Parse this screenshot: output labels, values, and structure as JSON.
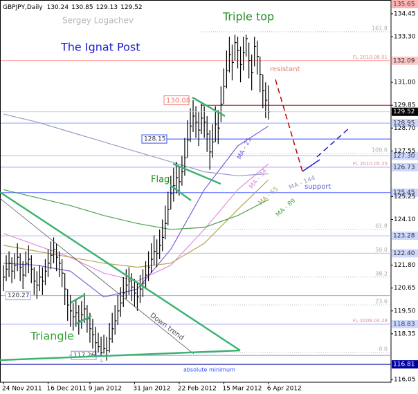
{
  "chart_data": {
    "type": "hlc",
    "annotations": {
      "symbol": "GBPJPY,Daily",
      "ohlc": [
        130.24,
        130.85,
        129.13,
        129.52
      ],
      "author": "Sergey Logachev",
      "site": "The Ignat Post",
      "pattern": "Triple top",
      "resistance": "resistant",
      "flag": "Flag",
      "support": "support",
      "triangle": "Triangle",
      "downtrend": "Down trend",
      "minimum": "absolute minimum",
      "low_mark": "L"
    },
    "ylim": [
      115.91,
      134.97
    ],
    "yticks": [
      134.45,
      {
        "value": 133.3,
        "label": "133.30"
      },
      {
        "value": 131.0,
        "label": "131.00"
      },
      129.85,
      {
        "value": 128.7,
        "label": "128.70"
      },
      127.55,
      125.25,
      {
        "value": 124.1,
        "label": "124.10"
      },
      {
        "value": 121.8,
        "label": "121.80"
      },
      120.65,
      {
        "value": 119.5,
        "label": "119.50"
      },
      118.35,
      116.05
    ],
    "categories": [
      "24 Nov 2011",
      null,
      null,
      null,
      null,
      null,
      null,
      null,
      null,
      null,
      null,
      null,
      null,
      null,
      null,
      null,
      "16 Dec 2011",
      null,
      null,
      null,
      null,
      null,
      null,
      null,
      null,
      null,
      null,
      null,
      null,
      null,
      null,
      "9 Jan 2012",
      null,
      null,
      null,
      null,
      null,
      null,
      null,
      null,
      null,
      null,
      null,
      null,
      null,
      null,
      null,
      "31 Jan 2012",
      null,
      null,
      null,
      null,
      null,
      null,
      null,
      null,
      null,
      null,
      null,
      null,
      null,
      null,
      null,
      "22 Feb 2012",
      null,
      null,
      null,
      null,
      null,
      null,
      null,
      null,
      null,
      null,
      null,
      null,
      null,
      null,
      null,
      "15 Mar 2012",
      null,
      null,
      null,
      null,
      null,
      null,
      null,
      null,
      null,
      null,
      null,
      null,
      null,
      null,
      null,
      "6 Apr 2012"
    ],
    "high": [
      121.8,
      122.3,
      122.5,
      122.2,
      122.4,
      122.9,
      122.4,
      122.0,
      122.5,
      122.8,
      122.3,
      121.7,
      121.5,
      121.8,
      121.7,
      122.1,
      122.6,
      123.0,
      123.2,
      122.9,
      122.5,
      122.1,
      121.4,
      120.6,
      120.3,
      119.9,
      120.1,
      119.8,
      120.0,
      120.4,
      119.8,
      119.4,
      119.1,
      118.7,
      118.4,
      118.2,
      118.3,
      118.2,
      118.9,
      119.4,
      119.8,
      120.3,
      120.7,
      121.2,
      121.6,
      121.7,
      121.4,
      121.1,
      120.9,
      121.3,
      121.6,
      122.0,
      122.5,
      122.9,
      123.3,
      123.1,
      123.6,
      124.1,
      124.8,
      125.5,
      126.3,
      126.7,
      127.0,
      126.8,
      127.3,
      128.2,
      129.1,
      129.7,
      130.1,
      129.8,
      129.5,
      130.0,
      129.8,
      129.3,
      128.6,
      128.9,
      129.8,
      129.6,
      130.8,
      131.7,
      132.6,
      133.3,
      132.9,
      133.4,
      133.3,
      132.8,
      133.3,
      133.4,
      133.0,
      132.4,
      133.3,
      133.1,
      132.3,
      131.4,
      131.0,
      130.85
    ],
    "low": [
      120.5,
      121.0,
      121.2,
      120.9,
      121.1,
      121.5,
      121.0,
      120.6,
      121.2,
      121.4,
      120.9,
      120.3,
      120.1,
      120.5,
      120.3,
      120.8,
      121.2,
      121.6,
      121.9,
      121.5,
      121.2,
      120.7,
      119.8,
      119.0,
      118.7,
      118.5,
      118.7,
      118.3,
      118.6,
      118.9,
      118.4,
      117.9,
      117.6,
      117.2,
      117.4,
      117.26,
      117.35,
      117.0,
      117.4,
      117.9,
      118.3,
      118.8,
      119.2,
      119.7,
      120.1,
      120.3,
      120.0,
      119.7,
      119.5,
      119.9,
      120.2,
      120.6,
      121.0,
      121.4,
      121.8,
      121.7,
      122.1,
      122.5,
      123.1,
      123.8,
      124.6,
      125.0,
      125.4,
      125.3,
      125.8,
      126.3,
      127.2,
      128.0,
      128.5,
      128.2,
      127.8,
      128.4,
      128.2,
      127.5,
      126.6,
      127.2,
      128.0,
      127.9,
      129.0,
      129.9,
      130.7,
      131.5,
      131.1,
      132.1,
      131.7,
      131.0,
      131.6,
      132.3,
      131.2,
      130.6,
      131.8,
      131.4,
      130.5,
      129.7,
      129.2,
      129.13
    ],
    "close": [
      121.2,
      121.6,
      121.9,
      121.5,
      121.8,
      122.2,
      121.7,
      121.3,
      121.9,
      122.1,
      121.6,
      121.0,
      120.8,
      121.2,
      121.0,
      121.5,
      121.9,
      122.3,
      122.6,
      122.2,
      121.9,
      121.4,
      120.6,
      119.8,
      119.5,
      119.2,
      119.4,
      119.0,
      119.3,
      119.6,
      119.1,
      118.6,
      118.3,
      117.9,
      117.7,
      117.4,
      117.6,
      117.5,
      118.1,
      118.6,
      119.0,
      119.5,
      119.9,
      120.4,
      120.8,
      121.0,
      120.7,
      120.4,
      120.2,
      120.6,
      120.9,
      121.3,
      121.7,
      122.1,
      122.5,
      122.4,
      122.8,
      123.2,
      123.9,
      124.6,
      125.4,
      125.8,
      126.2,
      126.0,
      126.5,
      127.2,
      128.1,
      128.8,
      129.3,
      129.0,
      128.6,
      129.2,
      129.0,
      128.4,
      127.5,
      128.0,
      128.9,
      128.7,
      129.9,
      130.8,
      131.6,
      132.4,
      132.0,
      133.0,
      132.6,
      131.9,
      132.5,
      133.2,
      132.1,
      131.5,
      132.8,
      132.3,
      131.4,
      130.6,
      130.1,
      129.52
    ],
    "bar_color": "#000000",
    "moving_averages": [
      {
        "name": "MA - 21",
        "color": "#7a5fd6",
        "x": [
          0,
          12,
          24,
          36,
          48,
          60,
          72,
          84,
          95
        ],
        "values": [
          121.9,
          121.8,
          121.5,
          120.2,
          120.6,
          122.6,
          125.6,
          127.8,
          128.8
        ]
      },
      {
        "name": "MA - 34",
        "color": "#e08ee0",
        "x": [
          0,
          12,
          24,
          36,
          48,
          60,
          72,
          84,
          95
        ],
        "values": [
          123.4,
          122.8,
          122.2,
          121.4,
          121.0,
          121.8,
          123.6,
          125.6,
          126.9
        ]
      },
      {
        "name": "MA - 55",
        "color": "#b4a458",
        "x": [
          0,
          12,
          24,
          36,
          48,
          60,
          72,
          84,
          95
        ],
        "values": [
          122.8,
          122.5,
          122.2,
          121.9,
          121.7,
          121.9,
          122.9,
          124.6,
          126.1
        ]
      },
      {
        "name": "MA - 89",
        "color": "#4aa24a",
        "x": [
          0,
          12,
          24,
          36,
          48,
          60,
          72,
          84,
          95
        ],
        "values": [
          125.6,
          125.2,
          124.8,
          124.3,
          123.9,
          123.6,
          123.7,
          124.3,
          125.1
        ]
      },
      {
        "name": "MA - 144",
        "color": "#9a9ac4",
        "x": [
          0,
          12,
          24,
          36,
          48,
          60,
          72,
          84,
          95
        ],
        "values": [
          129.4,
          129.0,
          128.5,
          128.0,
          127.5,
          127.0,
          126.5,
          126.3,
          126.4
        ]
      }
    ],
    "levels": [
      {
        "value": 135.65,
        "color": "#ff8080",
        "box": "#ffb4b4"
      },
      {
        "value": 132.09,
        "color": "#ff9a9a",
        "box": "#ffc4c4",
        "note": "FL 2010.08.01"
      },
      {
        "value": 129.85,
        "color": "#a00000"
      },
      {
        "value": 128.95,
        "color": "#8aa0ff",
        "box": "#cdd8ff"
      },
      {
        "value": 128.15,
        "color": "#2a4dff"
      },
      {
        "value": {
          "value": 127.3,
          "label": "127.30"
        },
        "color": "#a9b6ff",
        "box": "#cdd8ff"
      },
      {
        "value": 126.73,
        "color": "#9c9cff",
        "box": "#cdd8ff",
        "note": "FL 2010.05.25"
      },
      {
        "value": 125.45,
        "color": "#5a6aff",
        "box": "#cdd8ff"
      },
      {
        "value": 123.28,
        "color": "#b0b8e8",
        "box": "#cdd8ff"
      },
      {
        "value": {
          "value": 122.4,
          "label": "122.40"
        },
        "color": "#b8c0e8",
        "box": "#cdd8ff"
      },
      {
        "value": 120.27,
        "color": "#a0a8ff"
      },
      {
        "value": 118.83,
        "color": "#b0b0ff",
        "box": "#cdd8ff",
        "note": "FL 2009.04.28"
      },
      {
        "value": 117.26,
        "color": "#8c8cff"
      },
      {
        "value": 116.81,
        "color": "#0000a0",
        "box": "#0000a0",
        "text": "#ffffff"
      }
    ],
    "fib_levels": [
      {
        "label": "161.8",
        "price": 133.55
      },
      {
        "label": "100.0",
        "price": 127.42
      },
      {
        "label": "61.8",
        "price": 123.6
      },
      {
        "label": "50.0",
        "price": 122.4
      },
      {
        "label": "38.2",
        "price": 121.2
      },
      {
        "label": "23.6",
        "price": 119.8
      },
      {
        "label": "0.0",
        "price": 117.4
      }
    ],
    "price_labels": [
      {
        "value": 130.08,
        "color": "#f08070"
      }
    ],
    "last_box": "#000000"
  }
}
